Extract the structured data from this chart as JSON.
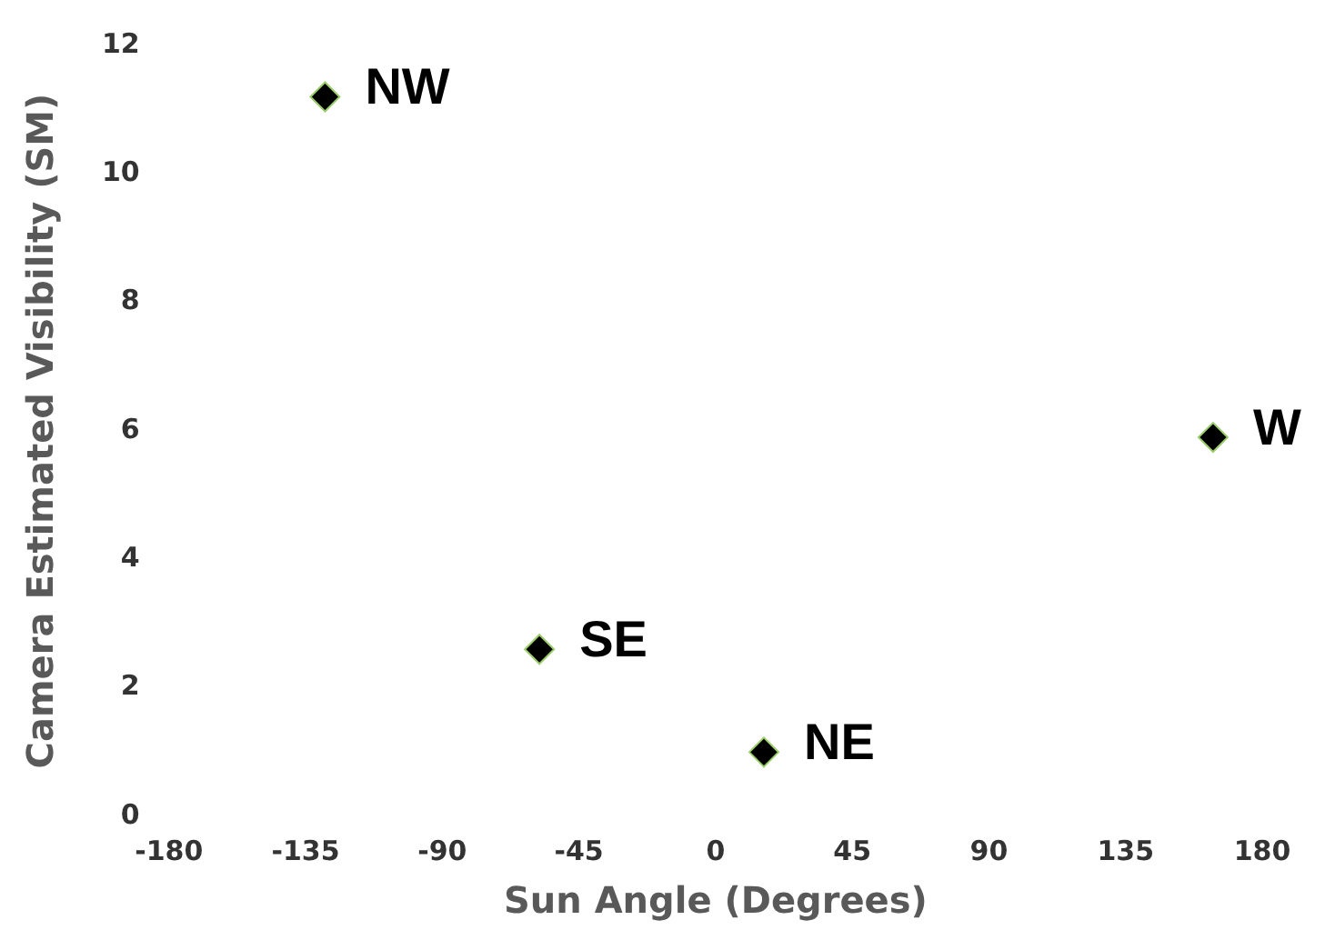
{
  "chart_data": {
    "type": "scatter",
    "xlabel": "Sun Angle (Degrees)",
    "ylabel": "Camera Estimated Visibility (SM)",
    "x": [
      -128.6,
      -58,
      15.9,
      163.8
    ],
    "series": [
      {
        "color": "#000000",
        "values": [
          11.2,
          2.6,
          1.0,
          5.9
        ]
      }
    ],
    "marker": "diamond",
    "grid": false,
    "legend": false,
    "xlim": [
      -180,
      180
    ],
    "xticks": [
      -180,
      -135,
      -90,
      -45,
      0,
      45,
      90,
      135,
      180
    ],
    "ylim": [
      0,
      12
    ],
    "yticks": [
      0,
      2,
      4,
      6,
      8,
      10,
      12
    ],
    "annotations": [
      {
        "text": "NW",
        "x": -128.6,
        "y": 11.2
      },
      {
        "text": "SE",
        "x": -58,
        "y": 2.6
      },
      {
        "text": "NE",
        "x": 15.9,
        "y": 1.0
      },
      {
        "text": "W",
        "x": 163.8,
        "y": 5.9
      }
    ]
  }
}
